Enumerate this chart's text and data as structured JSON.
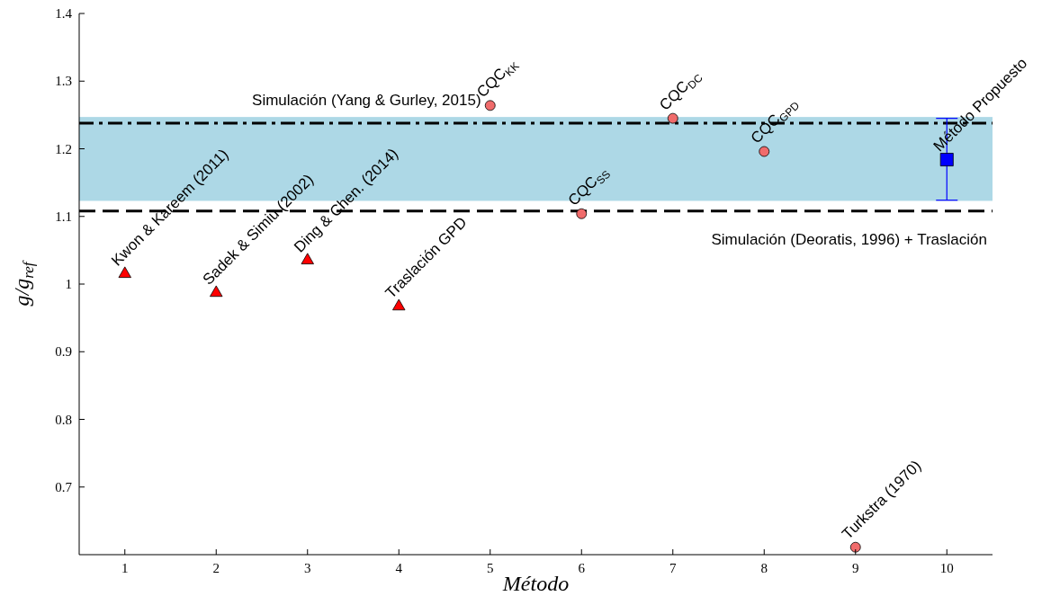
{
  "chart_data": {
    "type": "scatter",
    "xlabel": "Método",
    "ylabel": "g/g$_{ref}$",
    "xlim": [
      0.5,
      10.5
    ],
    "xticks": [
      1,
      2,
      3,
      4,
      5,
      6,
      7,
      8,
      9,
      10
    ],
    "ylim": [
      0.6,
      1.4
    ],
    "yticks": [
      0.7,
      0.8,
      0.9,
      1,
      1.1,
      1.2,
      1.3,
      1.4
    ],
    "grid": false,
    "series": [
      {
        "color": "#ff0000",
        "marker": "triangle",
        "x": [
          1,
          2,
          3,
          4
        ],
        "values": [
          1.015,
          0.987,
          1.035,
          0.967
        ]
      },
      {
        "color": "#f06b6b",
        "marker": "circle",
        "x": [
          5,
          6,
          7,
          8,
          9
        ],
        "values": [
          1.264,
          1.104,
          1.245,
          1.196,
          0.611
        ]
      },
      {
        "color": "#0000ff",
        "marker": "square",
        "x": [
          10
        ],
        "values": [
          1.184
        ],
        "errors": [
          [
            1.124,
            1.245
          ]
        ]
      }
    ],
    "bands": [
      {
        "axis": "y",
        "from": 1.123,
        "to": 1.247,
        "color": "#add8e6"
      }
    ],
    "ref_lines": [
      {
        "axis": "y",
        "value": 1.238,
        "label": "Simulación (Yang & Gurley, 2015)",
        "line_style": "dashdot",
        "color": "#000000"
      },
      {
        "axis": "y",
        "value": 1.108,
        "label": "Simulación (Deoratis, 1996) + Traslación",
        "line_style": "dashed",
        "color": "#000000"
      }
    ],
    "annotations": [
      {
        "text": "Kwon & Kareem (2011)",
        "x": 1,
        "y": 1.015
      },
      {
        "text": "Sadek & Simiu (2002)",
        "x": 2,
        "y": 0.987
      },
      {
        "text": "Ding & Chen. (2014)",
        "x": 3,
        "y": 1.035
      },
      {
        "text": "Traslación GPD",
        "x": 4,
        "y": 0.967
      },
      {
        "text": "CQC$_{KK}$",
        "x": 5,
        "y": 1.264
      },
      {
        "text": "CQC$_{SS}$",
        "x": 6,
        "y": 1.104
      },
      {
        "text": "CQC$_{DC}$",
        "x": 7,
        "y": 1.245
      },
      {
        "text": "CQC$_{GPD}$",
        "x": 8,
        "y": 1.196
      },
      {
        "text": "Turkstra (1970)",
        "x": 9,
        "y": 0.611
      },
      {
        "text": "Método Propuesto",
        "x": 10,
        "y": 1.184
      }
    ]
  }
}
